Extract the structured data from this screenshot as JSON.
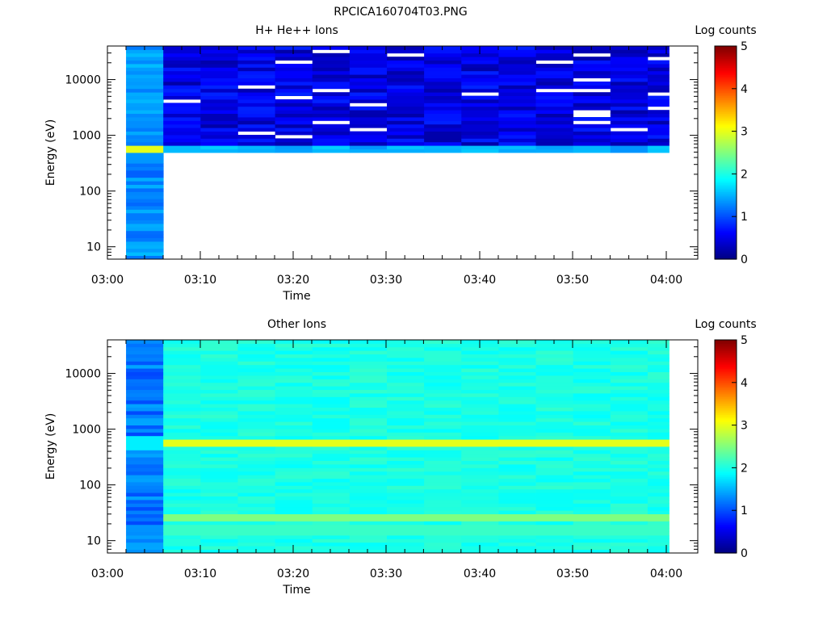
{
  "page_title": "RPCICA160704T03.PNG",
  "chart_data": [
    {
      "type": "heatmap",
      "title": "H+ He++ Ions",
      "xlabel": "Time",
      "ylabel": "Energy (eV)",
      "x_tick_labels": [
        "03:00",
        "03:10",
        "03:20",
        "03:30",
        "03:40",
        "03:50",
        "04:00"
      ],
      "x_range_minutes": [
        0,
        60
      ],
      "y_scale": "log",
      "y_range": [
        6,
        40000
      ],
      "y_tick_labels": [
        "10",
        "100",
        "1000",
        "10000"
      ],
      "colorbar": {
        "label": "Log counts",
        "range": [
          0,
          5
        ],
        "tick_labels": [
          "0",
          "1",
          "2",
          "3",
          "4",
          "5"
        ],
        "colormap": "jet"
      },
      "data_summary": [
        {
          "time_range": [
            "03:02",
            "03:06"
          ],
          "energy_range_eV": [
            6,
            40000
          ],
          "log_counts": 1.4,
          "note": "peak 3.0 near 600 eV"
        },
        {
          "time_range": [
            "03:06",
            "04:00"
          ],
          "energy_range_eV": [
            500,
            40000
          ],
          "log_counts": 0.5,
          "note": "1.5 near 550 eV, blank below 500 eV"
        }
      ]
    },
    {
      "type": "heatmap",
      "title": "Other Ions",
      "xlabel": "Time",
      "ylabel": "Energy (eV)",
      "x_tick_labels": [
        "03:00",
        "03:10",
        "03:20",
        "03:30",
        "03:40",
        "03:50",
        "04:00"
      ],
      "x_range_minutes": [
        0,
        60
      ],
      "y_scale": "log",
      "y_range": [
        6,
        40000
      ],
      "y_tick_labels": [
        "10",
        "100",
        "1000",
        "10000"
      ],
      "colorbar": {
        "label": "Log counts",
        "range": [
          0,
          5
        ],
        "tick_labels": [
          "0",
          "1",
          "2",
          "3",
          "4",
          "5"
        ],
        "colormap": "jet"
      },
      "data_summary": [
        {
          "time_range": [
            "03:02",
            "03:06"
          ],
          "energy_range_eV": [
            6,
            40000
          ],
          "log_counts": 1.2,
          "note": "1.8 near 600 eV"
        },
        {
          "time_range": [
            "03:06",
            "04:00"
          ],
          "energy_range_eV": [
            6,
            40000
          ],
          "log_counts": 2.0,
          "note": "peak 3.0 near 600 eV, 2.5 near 28 eV"
        }
      ]
    }
  ]
}
